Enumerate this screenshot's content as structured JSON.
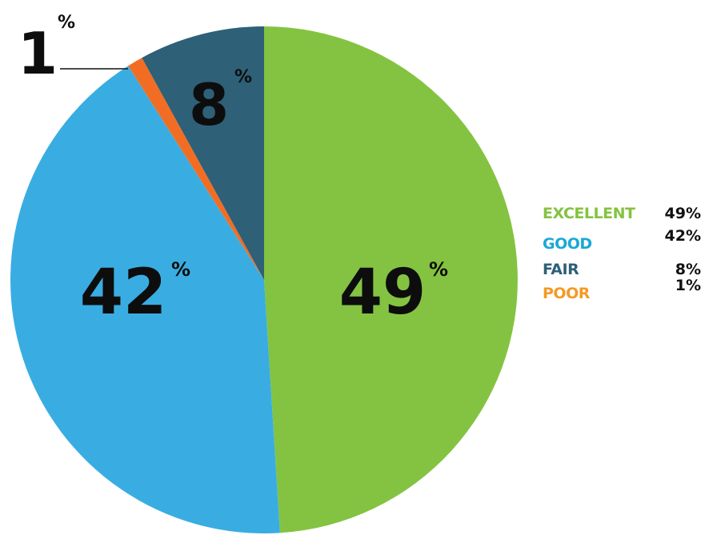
{
  "chart_data": {
    "type": "pie",
    "start_angle_deg": 0,
    "direction": "clockwise",
    "series": [
      {
        "name": "EXCELLENT",
        "value": 49,
        "label": "49%",
        "number": "49",
        "color": "#84c341"
      },
      {
        "name": "GOOD",
        "value": 42,
        "label": "42%",
        "number": "42",
        "color": "#39ade2"
      },
      {
        "name": "POOR",
        "value": 1,
        "label": "1%",
        "number": "1",
        "color": "#f26d24"
      },
      {
        "name": "FAIR",
        "value": 8,
        "label": "8%",
        "number": "8",
        "color": "#2e6077"
      }
    ],
    "percent_sign": "%",
    "legend": {
      "placement": "right",
      "items": [
        {
          "name": "EXCELLENT",
          "value_label": "49%",
          "color": "#84c341"
        },
        {
          "name": "GOOD",
          "value_label": "42%",
          "color": "#1ba8d4"
        },
        {
          "name": "FAIR",
          "value_label": "8%",
          "color": "#2e6077"
        },
        {
          "name": "POOR",
          "value_label": "1%",
          "color": "#f59a23"
        }
      ]
    }
  }
}
